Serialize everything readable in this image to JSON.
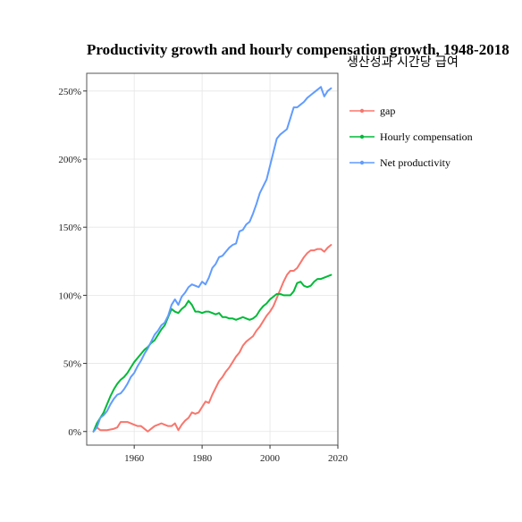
{
  "chart_data": {
    "type": "line",
    "title": "Productivity growth and hourly compensation growth, 1948-2018",
    "subtitle": "생산성과 시간당 급여",
    "xlabel": "",
    "ylabel": "",
    "xlim": [
      1946,
      2020
    ],
    "ylim": [
      -10,
      263
    ],
    "x_ticks": [
      1960,
      1980,
      2000,
      2020
    ],
    "x_tick_labels": [
      "1960",
      "1980",
      "2000",
      "2020"
    ],
    "y_ticks": [
      0,
      50,
      100,
      150,
      200,
      250
    ],
    "y_tick_labels": [
      "0%",
      "50%",
      "100%",
      "150%",
      "200%",
      "250%"
    ],
    "grid": true,
    "legend_position": "right",
    "series": [
      {
        "name": "gap",
        "color": "#F8766D",
        "x": [
          1948,
          1949,
          1950,
          1952,
          1954,
          1955,
          1956,
          1958,
          1960,
          1961,
          1962,
          1963,
          1964,
          1965,
          1966,
          1967,
          1968,
          1969,
          1970,
          1971,
          1972,
          1973,
          1974,
          1975,
          1976,
          1977,
          1978,
          1979,
          1980,
          1981,
          1982,
          1983,
          1984,
          1985,
          1986,
          1987,
          1988,
          1989,
          1990,
          1991,
          1992,
          1993,
          1994,
          1995,
          1996,
          1997,
          1998,
          1999,
          2000,
          2001,
          2002,
          2003,
          2004,
          2005,
          2006,
          2007,
          2008,
          2009,
          2010,
          2011,
          2012,
          2013,
          2014,
          2015,
          2016,
          2017,
          2018
        ],
        "y": [
          0,
          3,
          1,
          1,
          2,
          3,
          7,
          7,
          5,
          4,
          4,
          2,
          0,
          2,
          4,
          5,
          6,
          5,
          4,
          4,
          6,
          1,
          5,
          8,
          10,
          14,
          13,
          14,
          18,
          22,
          21,
          27,
          32,
          37,
          40,
          44,
          47,
          51,
          55,
          58,
          63,
          66,
          68,
          70,
          74,
          77,
          81,
          85,
          88,
          92,
          98,
          104,
          110,
          115,
          118,
          118,
          120,
          124,
          128,
          131,
          133,
          133,
          134,
          134,
          132,
          135,
          137
        ]
      },
      {
        "name": "Hourly compensation",
        "color": "#00BA38",
        "x": [
          1948,
          1949,
          1950,
          1951,
          1952,
          1953,
          1954,
          1955,
          1956,
          1957,
          1958,
          1959,
          1960,
          1961,
          1962,
          1963,
          1964,
          1965,
          1966,
          1967,
          1968,
          1969,
          1970,
          1971,
          1972,
          1973,
          1974,
          1975,
          1976,
          1977,
          1978,
          1979,
          1980,
          1981,
          1982,
          1983,
          1984,
          1985,
          1986,
          1987,
          1988,
          1989,
          1990,
          1991,
          1992,
          1993,
          1994,
          1995,
          1996,
          1997,
          1998,
          1999,
          2000,
          2001,
          2002,
          2003,
          2004,
          2005,
          2006,
          2007,
          2008,
          2009,
          2010,
          2011,
          2012,
          2013,
          2014,
          2015,
          2016,
          2017,
          2018
        ],
        "y": [
          0,
          6,
          10,
          14,
          20,
          26,
          31,
          35,
          38,
          40,
          43,
          47,
          51,
          54,
          57,
          60,
          62,
          65,
          67,
          71,
          75,
          78,
          84,
          90,
          88,
          87,
          90,
          92,
          96,
          93,
          88,
          88,
          87,
          88,
          88,
          87,
          86,
          87,
          84,
          84,
          83,
          83,
          82,
          83,
          84,
          83,
          82,
          83,
          85,
          89,
          92,
          94,
          97,
          99,
          101,
          101,
          100,
          100,
          100,
          103,
          109,
          110,
          107,
          106,
          107,
          110,
          112,
          112,
          113,
          114,
          115
        ]
      },
      {
        "name": "Net productivity",
        "color": "#619CFF",
        "x": [
          1948,
          1949,
          1950,
          1951,
          1952,
          1953,
          1954,
          1955,
          1956,
          1957,
          1958,
          1959,
          1960,
          1961,
          1962,
          1963,
          1964,
          1965,
          1966,
          1967,
          1968,
          1969,
          1970,
          1971,
          1972,
          1973,
          1974,
          1975,
          1976,
          1977,
          1978,
          1979,
          1980,
          1981,
          1982,
          1983,
          1984,
          1985,
          1986,
          1987,
          1988,
          1989,
          1990,
          1991,
          1992,
          1993,
          1994,
          1995,
          1996,
          1997,
          1998,
          1999,
          2000,
          2001,
          2002,
          2003,
          2004,
          2005,
          2006,
          2007,
          2008,
          2009,
          2010,
          2011,
          2012,
          2013,
          2014,
          2015,
          2016,
          2017,
          2018
        ],
        "y": [
          0,
          3,
          10,
          12,
          15,
          20,
          24,
          27,
          28,
          31,
          35,
          40,
          43,
          48,
          52,
          57,
          61,
          66,
          71,
          74,
          78,
          80,
          85,
          93,
          97,
          93,
          99,
          102,
          106,
          108,
          107,
          106,
          110,
          108,
          113,
          120,
          123,
          128,
          129,
          132,
          135,
          137,
          138,
          147,
          148,
          152,
          154,
          160,
          167,
          175,
          180,
          185,
          195,
          205,
          215,
          218,
          220,
          222,
          230,
          238,
          238,
          240,
          242,
          245,
          247,
          249,
          251,
          253,
          246,
          250,
          252
        ]
      }
    ]
  }
}
